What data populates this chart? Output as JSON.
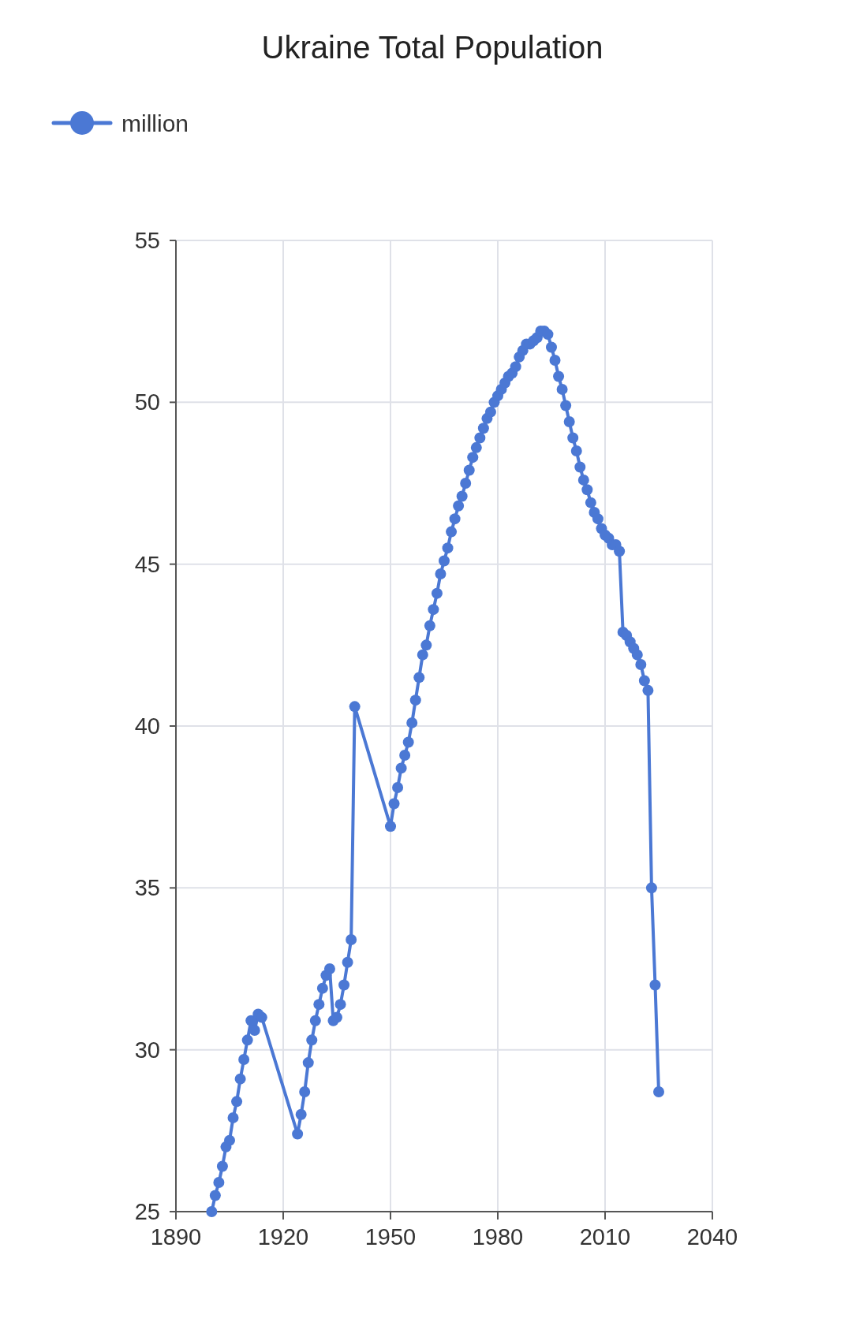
{
  "chart_data": {
    "type": "line",
    "title": "Ukraine Total Population",
    "x": [
      1900,
      1901,
      1902,
      1903,
      1904,
      1905,
      1906,
      1907,
      1908,
      1909,
      1910,
      1911,
      1912,
      1913,
      1914,
      1924,
      1925,
      1926,
      1927,
      1928,
      1929,
      1930,
      1931,
      1932,
      1933,
      1934,
      1935,
      1936,
      1937,
      1938,
      1939,
      1940,
      1950,
      1951,
      1952,
      1953,
      1954,
      1955,
      1956,
      1957,
      1958,
      1959,
      1960,
      1961,
      1962,
      1963,
      1964,
      1965,
      1966,
      1967,
      1968,
      1969,
      1970,
      1971,
      1972,
      1973,
      1974,
      1975,
      1976,
      1977,
      1978,
      1979,
      1980,
      1981,
      1982,
      1983,
      1984,
      1985,
      1986,
      1987,
      1988,
      1989,
      1990,
      1991,
      1992,
      1993,
      1994,
      1995,
      1996,
      1997,
      1998,
      1999,
      2000,
      2001,
      2002,
      2003,
      2004,
      2005,
      2006,
      2007,
      2008,
      2009,
      2010,
      2011,
      2012,
      2013,
      2014,
      2015,
      2016,
      2017,
      2018,
      2019,
      2020,
      2021,
      2022,
      2023,
      2024,
      2025
    ],
    "series": [
      {
        "name": "million",
        "color": "#4b78d4",
        "values": [
          25.0,
          25.5,
          25.9,
          26.4,
          27.0,
          27.2,
          27.9,
          28.4,
          29.1,
          29.7,
          30.3,
          30.9,
          30.6,
          31.1,
          31.0,
          27.4,
          28.0,
          28.7,
          29.6,
          30.3,
          30.9,
          31.4,
          31.9,
          32.3,
          32.5,
          30.9,
          31.0,
          31.4,
          32.0,
          32.7,
          33.4,
          40.6,
          36.9,
          37.6,
          38.1,
          38.7,
          39.1,
          39.5,
          40.1,
          40.8,
          41.5,
          42.2,
          42.5,
          43.1,
          43.6,
          44.1,
          44.7,
          45.1,
          45.5,
          46.0,
          46.4,
          46.8,
          47.1,
          47.5,
          47.9,
          48.3,
          48.6,
          48.9,
          49.2,
          49.5,
          49.7,
          50.0,
          50.2,
          50.4,
          50.6,
          50.8,
          50.9,
          51.1,
          51.4,
          51.6,
          51.8,
          51.8,
          51.9,
          52.0,
          52.2,
          52.2,
          52.1,
          51.7,
          51.3,
          50.8,
          50.4,
          49.9,
          49.4,
          48.9,
          48.5,
          48.0,
          47.6,
          47.3,
          46.9,
          46.6,
          46.4,
          46.1,
          45.9,
          45.8,
          45.6,
          45.6,
          45.4,
          42.9,
          42.8,
          42.6,
          42.4,
          42.2,
          41.9,
          41.4,
          41.1,
          35.0,
          32.0,
          28.7
        ]
      }
    ],
    "xlim": [
      1890,
      2040
    ],
    "xticks": [
      1890,
      1920,
      1950,
      1980,
      2010,
      2040
    ],
    "ylim": [
      25,
      55
    ],
    "yticks": [
      25,
      30,
      35,
      40,
      45,
      50,
      55
    ],
    "grid": true,
    "legend": "top left",
    "marker": "circle",
    "line_style": "solid"
  }
}
